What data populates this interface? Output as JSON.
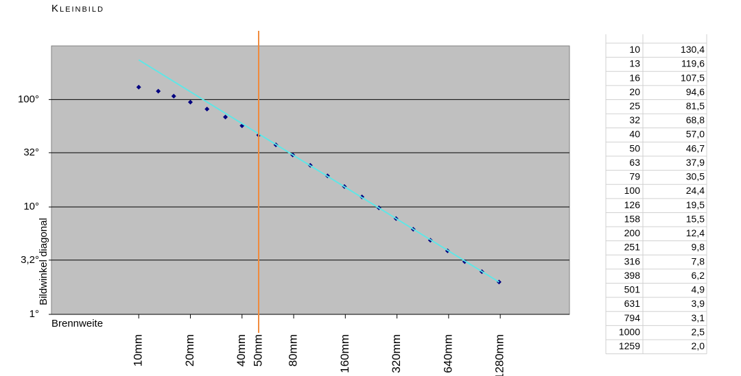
{
  "chart_data": {
    "type": "scatter",
    "title": "Kleinbild",
    "xlabel": "Brennweite",
    "ylabel": "Bildwinkel diagonal",
    "xscale": "log",
    "yscale": "log",
    "grid": true,
    "background": "#c0c0c0",
    "xlim": [
      3.1,
      3240
    ],
    "ylim": [
      1,
      316
    ],
    "xticks": [
      {
        "value": 10,
        "label": "10mm"
      },
      {
        "value": 20,
        "label": "20mm"
      },
      {
        "value": 40,
        "label": "40mm"
      },
      {
        "value": 80,
        "label": "80mm"
      },
      {
        "value": 160,
        "label": "160mm"
      },
      {
        "value": 320,
        "label": "320mm"
      },
      {
        "value": 640,
        "label": "640mm"
      },
      {
        "value": 1280,
        "label": "1280mm"
      }
    ],
    "yticks": [
      {
        "value": 1,
        "label": "1°"
      },
      {
        "value": 3.2,
        "label": "3,2°"
      },
      {
        "value": 10,
        "label": "10°"
      },
      {
        "value": 32,
        "label": "32°"
      },
      {
        "value": 100,
        "label": "100°"
      }
    ],
    "reference_line": {
      "value": 50,
      "label": "50mm",
      "color": "#f08a3c"
    },
    "series": [
      {
        "type": "scatter",
        "color": "#000080",
        "x": [
          10,
          13,
          16,
          20,
          25,
          32,
          40,
          50,
          63,
          79,
          100,
          126,
          158,
          200,
          251,
          316,
          398,
          501,
          631,
          794,
          1000,
          1259
        ],
        "values": [
          130.4,
          119.6,
          107.5,
          94.6,
          81.5,
          68.8,
          57.0,
          46.7,
          37.9,
          30.5,
          24.4,
          19.5,
          15.5,
          12.4,
          9.8,
          7.8,
          6.2,
          4.9,
          3.9,
          3.1,
          2.5,
          2.0
        ]
      },
      {
        "type": "line",
        "color": "#5fe6e6",
        "x": [
          10,
          1259
        ],
        "values": [
          234,
          2.0
        ]
      }
    ]
  },
  "table": {
    "rows": [
      [
        "10",
        "130,4"
      ],
      [
        "13",
        "119,6"
      ],
      [
        "16",
        "107,5"
      ],
      [
        "20",
        "94,6"
      ],
      [
        "25",
        "81,5"
      ],
      [
        "32",
        "68,8"
      ],
      [
        "40",
        "57,0"
      ],
      [
        "50",
        "46,7"
      ],
      [
        "63",
        "37,9"
      ],
      [
        "79",
        "30,5"
      ],
      [
        "100",
        "24,4"
      ],
      [
        "126",
        "19,5"
      ],
      [
        "158",
        "15,5"
      ],
      [
        "200",
        "12,4"
      ],
      [
        "251",
        "9,8"
      ],
      [
        "316",
        "7,8"
      ],
      [
        "398",
        "6,2"
      ],
      [
        "501",
        "4,9"
      ],
      [
        "631",
        "3,9"
      ],
      [
        "794",
        "3,1"
      ],
      [
        "1000",
        "2,5"
      ],
      [
        "1259",
        "2,0"
      ]
    ]
  }
}
